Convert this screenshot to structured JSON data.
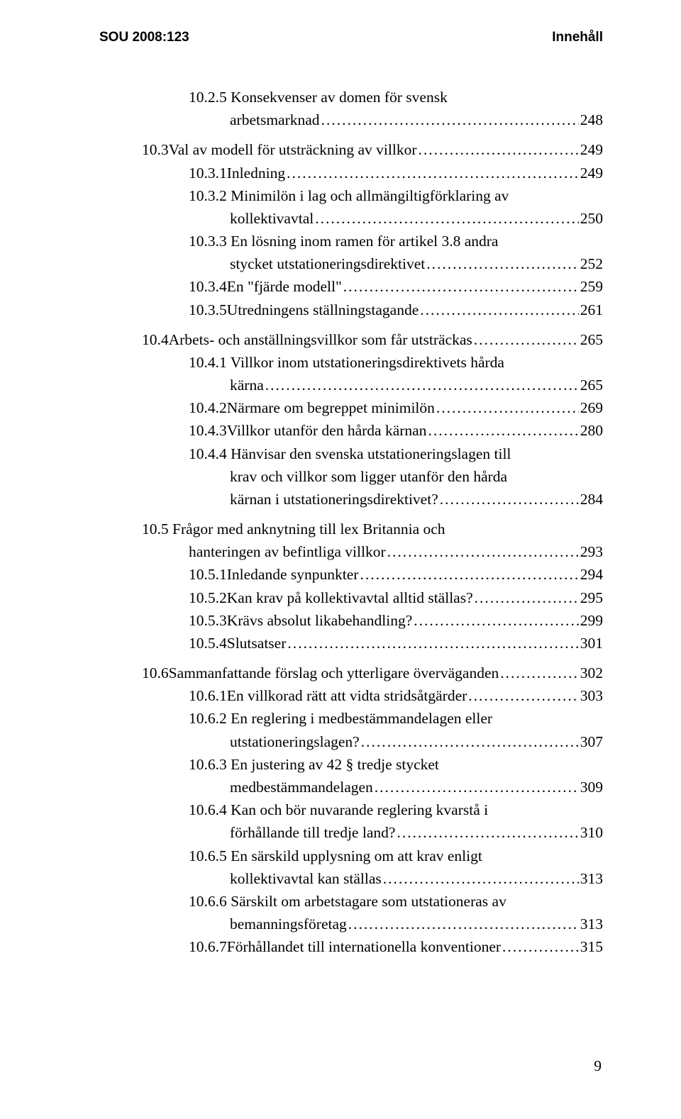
{
  "header": {
    "left": "SOU 2008:123",
    "right": "Innehåll"
  },
  "toc": [
    {
      "type": "cont",
      "indent": 2,
      "text": "10.2.5 Konsekvenser av domen för svensk"
    },
    {
      "type": "line",
      "indent": 3,
      "num": "",
      "text": "arbetsmarknad",
      "page": "248"
    },
    {
      "type": "line",
      "indent": 1,
      "num": "10.3 ",
      "text": "Val av modell för utsträckning av villkor",
      "page": "249"
    },
    {
      "type": "line",
      "indent": 2,
      "num": "10.3.1 ",
      "text": "Inledning",
      "page": "249"
    },
    {
      "type": "cont",
      "indent": 2,
      "text": "10.3.2 Minimilön i lag och allmängiltigförklaring av"
    },
    {
      "type": "line",
      "indent": 3,
      "num": "",
      "text": "kollektivavtal",
      "page": "250"
    },
    {
      "type": "cont",
      "indent": 2,
      "text": "10.3.3 En lösning inom ramen för artikel 3.8 andra"
    },
    {
      "type": "line",
      "indent": 3,
      "num": "",
      "text": "stycket utstationeringsdirektivet",
      "page": "252"
    },
    {
      "type": "line",
      "indent": 2,
      "num": "10.3.4 ",
      "text": "En \"fjärde modell\"",
      "page": "259"
    },
    {
      "type": "line",
      "indent": 2,
      "num": "10.3.5 ",
      "text": "Utredningens ställningstagande",
      "page": "261"
    },
    {
      "type": "line",
      "indent": 1,
      "num": "10.4 ",
      "text": "Arbets- och anställningsvillkor som får utsträckas",
      "page": "265"
    },
    {
      "type": "cont",
      "indent": 2,
      "text": "10.4.1 Villkor inom utstationeringsdirektivets hårda"
    },
    {
      "type": "line",
      "indent": 3,
      "num": "",
      "text": "kärna",
      "page": "265"
    },
    {
      "type": "line",
      "indent": 2,
      "num": "10.4.2 ",
      "text": "Närmare om begreppet minimilön",
      "page": "269"
    },
    {
      "type": "line",
      "indent": 2,
      "num": "10.4.3 ",
      "text": "Villkor utanför den hårda kärnan",
      "page": "280"
    },
    {
      "type": "cont",
      "indent": 2,
      "text": "10.4.4 Hänvisar den svenska utstationeringslagen till"
    },
    {
      "type": "cont",
      "indent": 3,
      "text": "krav och villkor som ligger utanför den hårda"
    },
    {
      "type": "line",
      "indent": 3,
      "num": "",
      "text": "kärnan i utstationeringsdirektivet?",
      "page": "284"
    },
    {
      "type": "cont",
      "indent": 1,
      "text": "10.5 Frågor med anknytning till lex Britannia och"
    },
    {
      "type": "line",
      "indent": 2,
      "num": "",
      "text": "hanteringen av befintliga villkor",
      "page": "293"
    },
    {
      "type": "line",
      "indent": 2,
      "num": "10.5.1 ",
      "text": "Inledande synpunkter",
      "page": "294"
    },
    {
      "type": "line",
      "indent": 2,
      "num": "10.5.2 ",
      "text": "Kan krav på kollektivavtal alltid ställas?",
      "page": "295"
    },
    {
      "type": "line",
      "indent": 2,
      "num": "10.5.3 ",
      "text": "Krävs absolut likabehandling?",
      "page": "299"
    },
    {
      "type": "line",
      "indent": 2,
      "num": "10.5.4 ",
      "text": "Slutsatser",
      "page": "301"
    },
    {
      "type": "line",
      "indent": 1,
      "num": "10.6 ",
      "text": "Sammanfattande förslag och ytterligare överväganden",
      "page": "302"
    },
    {
      "type": "line",
      "indent": 2,
      "num": "10.6.1 ",
      "text": "En villkorad rätt att vidta stridsåtgärder",
      "page": "303"
    },
    {
      "type": "cont",
      "indent": 2,
      "text": "10.6.2 En reglering i medbestämmandelagen eller"
    },
    {
      "type": "line",
      "indent": 3,
      "num": "",
      "text": "utstationeringslagen?",
      "page": "307"
    },
    {
      "type": "cont",
      "indent": 2,
      "text": "10.6.3 En justering av 42 § tredje stycket"
    },
    {
      "type": "line",
      "indent": 3,
      "num": "",
      "text": "medbestämmandelagen",
      "page": "309"
    },
    {
      "type": "cont",
      "indent": 2,
      "text": "10.6.4 Kan och bör nuvarande reglering kvarstå i"
    },
    {
      "type": "line",
      "indent": 3,
      "num": "",
      "text": "förhållande till tredje land?",
      "page": "310"
    },
    {
      "type": "cont",
      "indent": 2,
      "text": "10.6.5 En särskild upplysning om att krav enligt"
    },
    {
      "type": "line",
      "indent": 3,
      "num": "",
      "text": "kollektivavtal kan ställas",
      "page": "313"
    },
    {
      "type": "cont",
      "indent": 2,
      "text": "10.6.6 Särskilt om arbetstagare som utstationeras av"
    },
    {
      "type": "line",
      "indent": 3,
      "num": "",
      "text": "bemanningsföretag",
      "page": "313"
    },
    {
      "type": "line",
      "indent": 2,
      "num": "10.6.7 ",
      "text": "Förhållandet till internationella konventioner",
      "page": "315"
    }
  ],
  "gaps_after": [
    1,
    9,
    17,
    23
  ],
  "page_number": "9",
  "colors": {
    "text": "#000000",
    "background": "#ffffff"
  },
  "font_sizes": {
    "header": 19,
    "body": 21.5
  }
}
